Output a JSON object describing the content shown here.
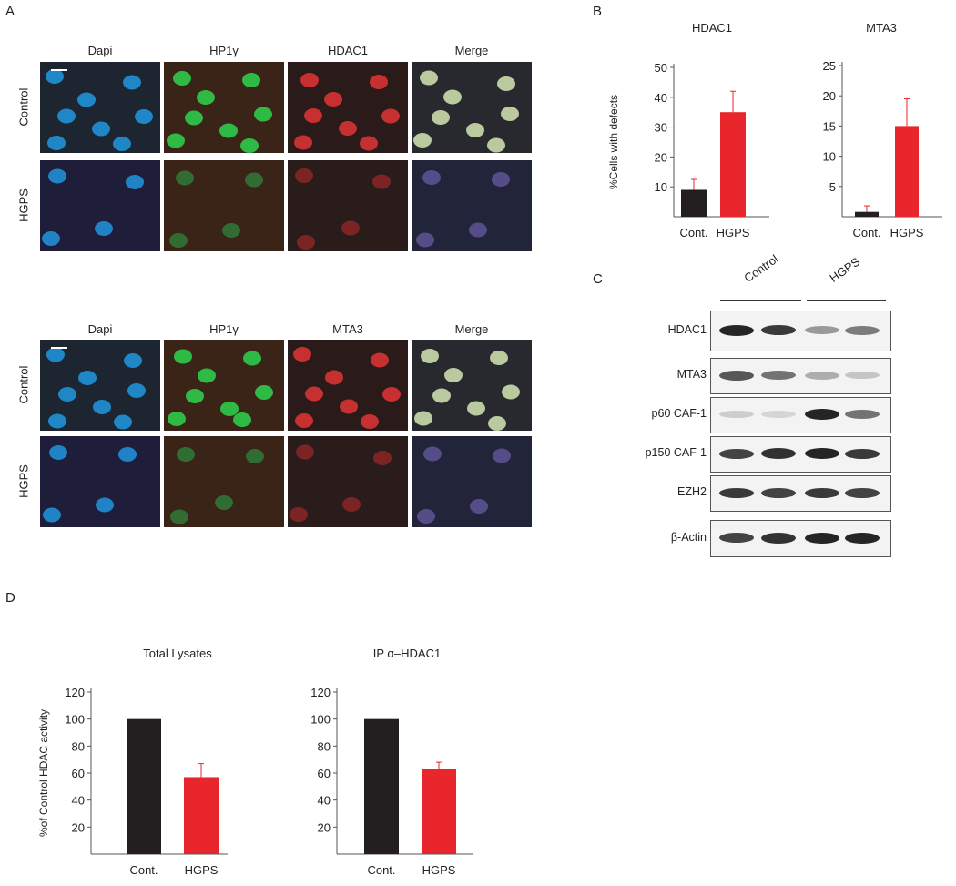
{
  "panels": {
    "A": {
      "letter": "A",
      "columns_top": [
        "Dapi",
        "HP1γ",
        "HDAC1",
        "Merge"
      ],
      "columns_bottom": [
        "Dapi",
        "HP1γ",
        "MTA3",
        "Merge"
      ],
      "rows": [
        "Control",
        "HGPS"
      ]
    },
    "B": {
      "letter": "B"
    },
    "C": {
      "letter": "C",
      "group_labels": [
        "Control",
        "HGPS"
      ],
      "blots": [
        "HDAC1",
        "MTA3",
        "p60 CAF-1",
        "p150 CAF-1",
        "EZH2",
        "β-Actin"
      ],
      "bands": [
        [
          0.95,
          0.85,
          0.35,
          0.5
        ],
        [
          0.7,
          0.55,
          0.25,
          0.12
        ],
        [
          0.08,
          0.04,
          0.95,
          0.55
        ],
        [
          0.8,
          0.9,
          0.95,
          0.85
        ],
        [
          0.85,
          0.8,
          0.85,
          0.8
        ],
        [
          0.8,
          0.9,
          0.95,
          0.95
        ]
      ]
    },
    "D": {
      "letter": "D"
    }
  },
  "colors": {
    "control": "#231f20",
    "hgps": "#e8262c",
    "error": "#e8262c"
  },
  "chart_data": [
    {
      "type": "bar",
      "title": "HDAC1",
      "categories": [
        "Cont.",
        "HGPS"
      ],
      "values": [
        9,
        35
      ],
      "errors": [
        3.5,
        7
      ],
      "ylabel": "%Cells with defects",
      "ylim": [
        0,
        50
      ],
      "yticks": [
        10,
        20,
        30,
        40,
        50
      ]
    },
    {
      "type": "bar",
      "title": "MTA3",
      "categories": [
        "Cont.",
        "HGPS"
      ],
      "values": [
        0.8,
        15
      ],
      "errors": [
        1,
        4.5
      ],
      "ylabel": "",
      "ylim": [
        0,
        25
      ],
      "yticks": [
        5,
        10,
        15,
        20,
        25
      ]
    },
    {
      "type": "bar",
      "title": "Total Lysates",
      "categories": [
        "Cont.",
        "HGPS"
      ],
      "values": [
        100,
        57
      ],
      "errors": [
        0,
        10
      ],
      "ylabel": "%of Control HDAC activity",
      "ylim": [
        0,
        120
      ],
      "yticks": [
        20,
        40,
        60,
        80,
        100,
        120
      ]
    },
    {
      "type": "bar",
      "title": "IP α–HDAC1",
      "categories": [
        "Cont.",
        "HGPS"
      ],
      "values": [
        100,
        63
      ],
      "errors": [
        0,
        5
      ],
      "ylabel": "",
      "ylim": [
        0,
        120
      ],
      "yticks": [
        20,
        40,
        60,
        80,
        100,
        120
      ]
    }
  ]
}
